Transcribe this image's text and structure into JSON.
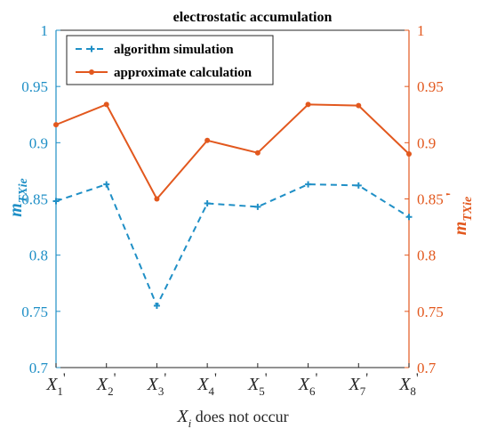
{
  "chart_data": {
    "type": "line",
    "title": "electrostatic accumulation",
    "xlabel": "X_i does not occur",
    "xlabel_parts": {
      "var": "X",
      "sub": "i",
      "rest": " does not occur"
    },
    "ylabel_left": {
      "base": "m",
      "sub": "TXie"
    },
    "ylabel_right": {
      "base": "m",
      "sub": "TXie",
      "prime": "'"
    },
    "categories": [
      {
        "base": "X",
        "sub": "1",
        "prime": "'"
      },
      {
        "base": "X",
        "sub": "2",
        "prime": "'"
      },
      {
        "base": "X",
        "sub": "3",
        "prime": "'"
      },
      {
        "base": "X",
        "sub": "4",
        "prime": "'"
      },
      {
        "base": "X",
        "sub": "5",
        "prime": "'"
      },
      {
        "base": "X",
        "sub": "6",
        "prime": "'"
      },
      {
        "base": "X",
        "sub": "7",
        "prime": "'"
      },
      {
        "base": "X",
        "sub": "8",
        "prime": "'"
      }
    ],
    "ylim": [
      0.7,
      1.0
    ],
    "yticks": [
      "0.7",
      "0.75",
      "0.8",
      "0.85",
      "0.9",
      "0.95",
      "1"
    ],
    "grid": false,
    "legend_position": "top-left",
    "series": [
      {
        "name": "algorithm simulation",
        "axis": "left",
        "color": "#1f8fc6",
        "line_style": "dashed",
        "marker": "plus",
        "values": [
          0.848,
          0.863,
          0.755,
          0.846,
          0.843,
          0.863,
          0.862,
          0.834
        ]
      },
      {
        "name": "approximate calculation",
        "axis": "right",
        "color": "#e2581e",
        "line_style": "solid",
        "marker": "dot",
        "values": [
          0.916,
          0.934,
          0.85,
          0.902,
          0.891,
          0.934,
          0.933,
          0.89
        ]
      }
    ],
    "left_axis_color": "#1f8fc6",
    "right_axis_color": "#e2581e"
  }
}
